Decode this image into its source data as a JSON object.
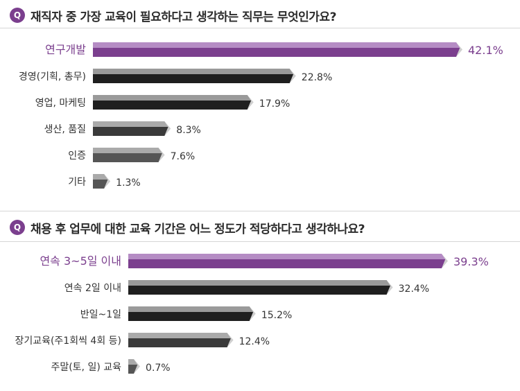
{
  "questions": [
    {
      "badge": "Q",
      "text": "재직자 중 가장 교육이 필요하다고 생각하는 직무는 무엇인가요?"
    },
    {
      "badge": "Q",
      "text": "채용 후 업무에 대한 교육 기간은 어느 정도가 적당하다고 생각하나요?"
    }
  ],
  "colors": {
    "accent": "#7b3f8e",
    "accent_top": "#b58cc4",
    "dark": "#1f1f1f",
    "dark_top": "#9a9a9a",
    "mid": "#3a3a3a",
    "gray": "#555555",
    "gray_top": "#aaaaaa"
  },
  "chart_data": [
    {
      "type": "bar",
      "orientation": "horizontal",
      "categories": [
        "연구개발",
        "경영(기획, 총무)",
        "영업, 마케팅",
        "생산, 품질",
        "인증",
        "기타"
      ],
      "values": [
        42.1,
        22.8,
        17.9,
        8.3,
        7.6,
        1.3
      ],
      "value_labels": [
        "42.1%",
        "22.8%",
        "17.9%",
        "8.3%",
        "7.6%",
        "1.3%"
      ],
      "highlight_index": 0,
      "xlim": [
        0,
        42.1
      ]
    },
    {
      "type": "bar",
      "orientation": "horizontal",
      "categories": [
        "연속 3~5일 이내",
        "연속 2일 이내",
        "반일~1일",
        "장기교육(주1회씩 4회 등)",
        "주말(토, 일) 교육"
      ],
      "values": [
        39.3,
        32.4,
        15.2,
        12.4,
        0.7
      ],
      "value_labels": [
        "39.3%",
        "32.4%",
        "15.2%",
        "12.4%",
        "0.7%"
      ],
      "highlight_index": 0,
      "xlim": [
        0,
        39.3
      ]
    }
  ]
}
